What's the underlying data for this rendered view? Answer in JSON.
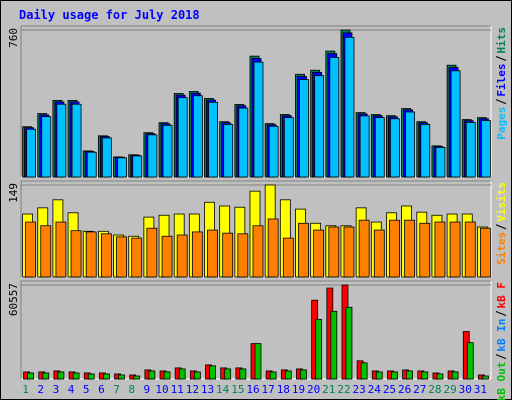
{
  "chart_data": [
    {
      "type": "bar",
      "title": "Daily usage for July 2018",
      "series": [
        {
          "name": "Hits",
          "color": "#00805c",
          "values": [
            260,
            328,
            396,
            396,
            135,
            213,
            104,
            115,
            229,
            281,
            432,
            442,
            406,
            286,
            375,
            625,
            276,
            323,
            531,
            552,
            651,
            760,
            333,
            323,
            317,
            354,
            286,
            161,
            578,
            297,
            307
          ]
        },
        {
          "name": "Files",
          "color": "#0000ff",
          "values": [
            255,
            321,
            388,
            388,
            132,
            209,
            102,
            113,
            224,
            275,
            423,
            433,
            398,
            280,
            368,
            613,
            270,
            317,
            520,
            541,
            638,
            745,
            326,
            317,
            311,
            347,
            280,
            158,
            566,
            291,
            301
          ]
        },
        {
          "name": "Pages",
          "color": "#00c0ff",
          "values": [
            247,
            312,
            376,
            376,
            128,
            202,
            99,
            109,
            218,
            267,
            410,
            420,
            386,
            272,
            356,
            594,
            262,
            307,
            504,
            524,
            618,
            722,
            316,
            307,
            301,
            336,
            272,
            153,
            549,
            282,
            292
          ]
        }
      ],
      "ylim": [
        0,
        760
      ],
      "yticks": [
        760
      ],
      "grid": true
    },
    {
      "type": "bar",
      "series": [
        {
          "name": "Visits",
          "color": "#ffff00",
          "values": [
            102,
            112,
            125,
            104,
            74,
            74,
            68,
            66,
            97,
            100,
            102,
            102,
            121,
            115,
            113,
            139,
            149,
            125,
            110,
            87,
            83,
            83,
            112,
            89,
            104,
            115,
            105,
            100,
            102,
            102,
            81
          ]
        },
        {
          "name": "Sites",
          "color": "#ff8000",
          "values": [
            89,
            83,
            89,
            75,
            73,
            70,
            65,
            63,
            79,
            66,
            68,
            73,
            76,
            71,
            70,
            83,
            94,
            63,
            87,
            76,
            81,
            81,
            92,
            76,
            92,
            92,
            87,
            89,
            89,
            89,
            79
          ]
        }
      ],
      "ylim": [
        0,
        149
      ],
      "yticks": [
        149
      ],
      "grid": true
    },
    {
      "type": "bar",
      "categories": [
        "1",
        "2",
        "3",
        "4",
        "5",
        "6",
        "7",
        "8",
        "9",
        "10",
        "11",
        "12",
        "13",
        "14",
        "15",
        "16",
        "17",
        "18",
        "19",
        "20",
        "21",
        "22",
        "23",
        "24",
        "25",
        "26",
        "27",
        "28",
        "29",
        "30",
        "31"
      ],
      "category_colors": [
        "#00805c",
        "#0000ff",
        "#0000ff",
        "#0000ff",
        "#0000ff",
        "#0000ff",
        "#00805c",
        "#00805c",
        "#0000ff",
        "#0000ff",
        "#0000ff",
        "#0000ff",
        "#0000ff",
        "#00805c",
        "#00805c",
        "#0000ff",
        "#0000ff",
        "#0000ff",
        "#0000ff",
        "#0000ff",
        "#00805c",
        "#00805c",
        "#0000ff",
        "#0000ff",
        "#0000ff",
        "#0000ff",
        "#0000ff",
        "#00805c",
        "#00805c",
        "#0000ff",
        "#0000ff"
      ],
      "series": [
        {
          "name": "kB F",
          "color": "#ff0000",
          "values": [
            4557,
            4557,
            5208,
            4557,
            3906,
            3906,
            3255,
            2604,
            5859,
            5208,
            7161,
            5208,
            9114,
            7161,
            7161,
            22785,
            5208,
            5859,
            6510,
            50778,
            58590,
            60557,
            11718,
            5208,
            5208,
            5859,
            5208,
            3906,
            5208,
            30597,
            2604
          ]
        },
        {
          "name": "kB In",
          "color": "#0080ff",
          "values": [
            0,
            0,
            0,
            0,
            0,
            0,
            0,
            0,
            0,
            0,
            0,
            0,
            0,
            0,
            0,
            0,
            0,
            0,
            0,
            0,
            0,
            0,
            0,
            0,
            0,
            0,
            0,
            0,
            0,
            0,
            0
          ]
        },
        {
          "name": "kB Out",
          "color": "#00c000",
          "values": [
            3900,
            3900,
            4550,
            3900,
            3250,
            3250,
            2600,
            1950,
            5200,
            4550,
            6500,
            4550,
            8450,
            6500,
            6500,
            22785,
            4550,
            5200,
            5850,
            38400,
            43600,
            46200,
            10400,
            4550,
            4550,
            5200,
            4550,
            3250,
            4550,
            23400,
            1950
          ]
        }
      ],
      "ylim": [
        0,
        60557
      ],
      "yticks": [
        60557
      ],
      "grid": true
    }
  ]
}
